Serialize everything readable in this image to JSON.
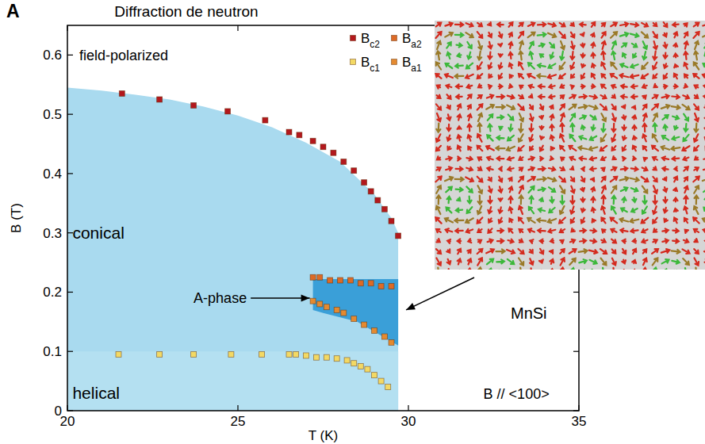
{
  "chart_data": {
    "type": "scatter",
    "panel_label": "A",
    "title": "Diffraction de neutron",
    "x_label": "T (K)",
    "y_label": "B (T)",
    "xlim": [
      20,
      35
    ],
    "ylim": [
      0,
      0.65
    ],
    "xticks": [
      20,
      25,
      30,
      35
    ],
    "yticks": [
      0,
      0.1,
      0.2,
      0.3,
      0.4,
      0.5,
      0.6
    ],
    "grid": false,
    "legend": "top",
    "series": [
      {
        "name": "Bc2",
        "color": "#b3181d",
        "marker": "square",
        "x": [
          21.6,
          22.7,
          23.7,
          24.7,
          25.8,
          26.5,
          26.8,
          27.2,
          27.5,
          27.8,
          28.1,
          28.4,
          28.7,
          28.9,
          29.1,
          29.3,
          29.5,
          29.7
        ],
        "values": [
          0.535,
          0.525,
          0.515,
          0.505,
          0.49,
          0.47,
          0.465,
          0.455,
          0.445,
          0.435,
          0.42,
          0.405,
          0.385,
          0.37,
          0.355,
          0.34,
          0.32,
          0.295
        ]
      },
      {
        "name": "Ba2",
        "color": "#dd6a26",
        "marker": "square",
        "x": [
          27.2,
          27.4,
          27.7,
          28.0,
          28.3,
          28.6,
          28.9,
          29.2,
          29.5
        ],
        "values": [
          0.225,
          0.225,
          0.22,
          0.22,
          0.22,
          0.215,
          0.215,
          0.21,
          0.21
        ]
      },
      {
        "name": "Bc1",
        "color": "#f3d964",
        "marker": "square",
        "x": [
          21.5,
          22.7,
          23.7,
          24.8,
          25.7,
          26.5,
          26.7,
          27.0,
          27.3,
          27.6,
          27.9,
          28.2,
          28.4,
          28.6,
          28.8,
          29.0,
          29.2,
          29.4
        ],
        "values": [
          0.095,
          0.095,
          0.095,
          0.095,
          0.095,
          0.095,
          0.095,
          0.093,
          0.09,
          0.09,
          0.088,
          0.085,
          0.08,
          0.075,
          0.07,
          0.06,
          0.05,
          0.04
        ]
      },
      {
        "name": "Ba1",
        "color": "#e48a30",
        "marker": "square",
        "x": [
          27.2,
          27.4,
          27.6,
          27.9,
          28.1,
          28.4,
          28.7,
          29.0,
          29.3,
          29.5
        ],
        "values": [
          0.185,
          0.18,
          0.175,
          0.17,
          0.165,
          0.155,
          0.145,
          0.135,
          0.125,
          0.115
        ]
      }
    ],
    "regions": [
      {
        "label": "conical",
        "color": "#a9daef",
        "x": [
          20,
          20,
          21,
          22,
          23,
          24,
          25,
          26,
          27,
          28,
          29,
          29.5,
          29.7,
          29.7
        ],
        "y": [
          0,
          0.545,
          0.54,
          0.533,
          0.525,
          0.513,
          0.498,
          0.478,
          0.452,
          0.42,
          0.365,
          0.325,
          0.3,
          0
        ]
      },
      {
        "label": "helical",
        "color": "#b4e0f1",
        "x": [
          20,
          20,
          29.7,
          29.7
        ],
        "y": [
          0,
          0.1,
          0.1,
          0
        ]
      },
      {
        "label": "A-phase",
        "color": "#3a9fd8",
        "x": [
          27.2,
          27.2,
          29.7,
          29.7,
          28.5,
          27.5
        ],
        "y": [
          0.17,
          0.222,
          0.222,
          0.11,
          0.15,
          0.165
        ]
      }
    ],
    "annotations": [
      {
        "text": "field-polarized"
      },
      {
        "text": "MnSi"
      },
      {
        "text": "B // <100>"
      }
    ]
  }
}
